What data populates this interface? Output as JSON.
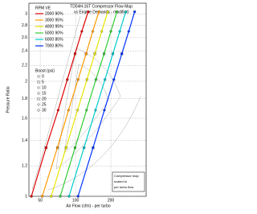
{
  "chart_data": {
    "type": "line",
    "title": [
      "TD04H-16T Compressor Flow Map",
      "vs Engine Demands - modified"
    ],
    "x_label": "Air Flow (cfm) - per turbo",
    "y_label": "Pressure Ratio",
    "xlim": [
      40,
      400
    ],
    "xticks": [
      50,
      100,
      200
    ],
    "x_log": true,
    "ylim": [
      1,
      3.2
    ],
    "yticks": [
      1,
      1.2,
      1.4,
      1.6,
      1.8,
      2,
      2.2,
      2.4,
      2.6,
      2.8,
      3
    ],
    "y_log": true,
    "grid": true,
    "legend_title": "RPM VE",
    "series": [
      {
        "name": "2000 90%",
        "color": "#e00000",
        "x": [
          42,
          56,
          71,
          85,
          99,
          113,
          128
        ],
        "values": [
          1.0,
          1.34,
          1.68,
          2.02,
          2.36,
          2.7,
          3.04
        ]
      },
      {
        "name": "3000 95%",
        "color": "#ff9900",
        "x": [
          52,
          70,
          87,
          105,
          123,
          140,
          158
        ],
        "values": [
          1.0,
          1.34,
          1.68,
          2.02,
          2.36,
          2.7,
          3.04
        ]
      },
      {
        "name": "4000 95%",
        "color": "#e6e600",
        "x": [
          62,
          83,
          104,
          125,
          146,
          167,
          188
        ],
        "values": [
          1.0,
          1.34,
          1.68,
          2.02,
          2.36,
          2.7,
          3.04
        ]
      },
      {
        "name": "5000 90%",
        "color": "#33cc33",
        "x": [
          74,
          99,
          124,
          149,
          175,
          200,
          225
        ],
        "values": [
          1.0,
          1.34,
          1.68,
          2.02,
          2.36,
          2.7,
          3.04
        ]
      },
      {
        "name": "6000 85%",
        "color": "#00cccc",
        "x": [
          88,
          118,
          148,
          178,
          208,
          238,
          268
        ],
        "values": [
          1.0,
          1.34,
          1.68,
          2.02,
          2.36,
          2.7,
          3.04
        ]
      },
      {
        "name": "7000 80%",
        "color": "#0033ff",
        "x": [
          105,
          141,
          176,
          212,
          248,
          284,
          319
        ],
        "values": [
          1.0,
          1.34,
          1.68,
          2.02,
          2.36,
          2.7,
          3.04
        ]
      }
    ],
    "boost_title": "Boost (psi)",
    "boost_labels": [
      "0",
      "5",
      "10",
      "15",
      "20",
      "25",
      "30"
    ],
    "note": [
      "Compressor map",
      "scaled to",
      "per turbo flow"
    ]
  }
}
